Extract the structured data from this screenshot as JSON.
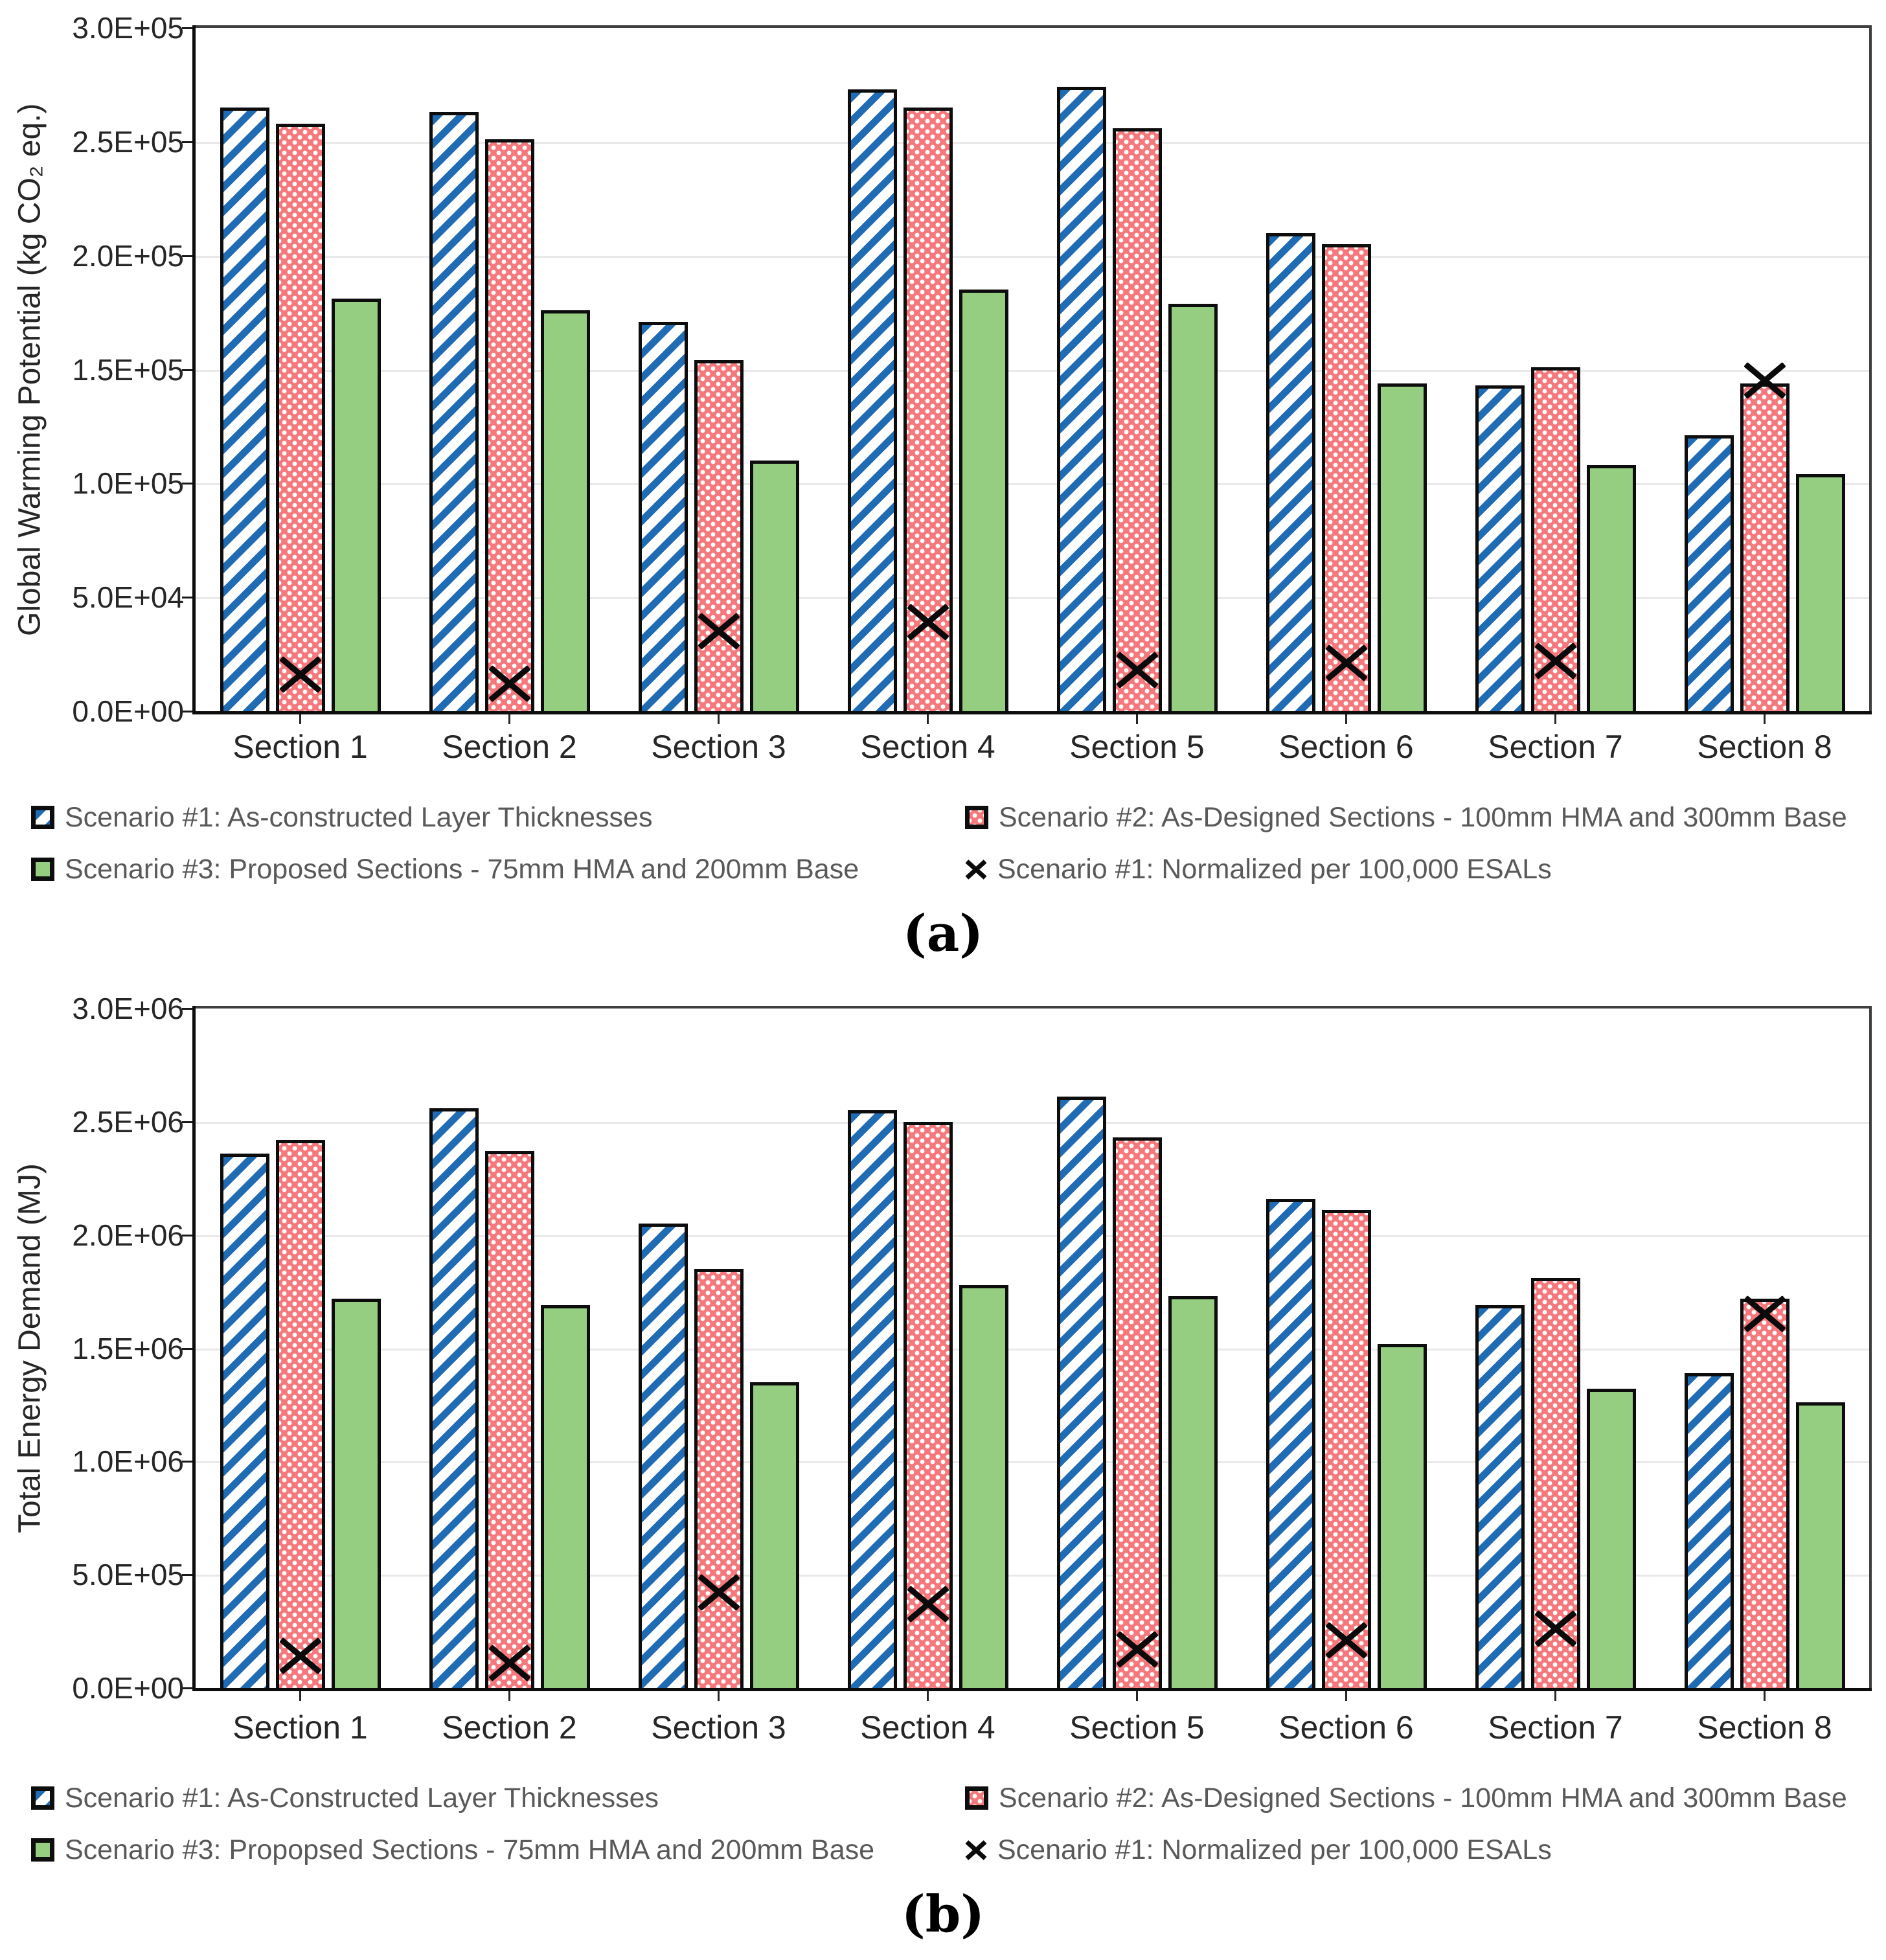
{
  "colors": {
    "scenario1_blue": "#1F6CB5",
    "scenario2_pink": "#F5787C",
    "scenario2_dot": "#FFFFFF",
    "scenario3_green": "#95CE81",
    "bar_border": "#0D0D0D",
    "marker_black": "#0A0A0A",
    "gridline": "#E9E9E9",
    "axis_text": "#262626",
    "legend_text": "#595959"
  },
  "chart_data": [
    {
      "type": "bar",
      "caption": "(a)",
      "ylabel": "Global Warming Potential  (kg CO₂ eq.)",
      "xlabel": "",
      "ylim": [
        0,
        300000
      ],
      "ytick_labels": [
        "0.0E+00",
        "5.0E+04",
        "1.0E+05",
        "1.5E+05",
        "2.0E+05",
        "2.5E+05",
        "3.0E+05"
      ],
      "grid": true,
      "legend_position": "bottom",
      "categories": [
        "Section 1",
        "Section 2",
        "Section 3",
        "Section 4",
        "Section 5",
        "Section 6",
        "Section 7",
        "Section 8"
      ],
      "series": [
        {
          "name": "Scenario #1: As-constructed Layer Thicknesses",
          "type": "bar",
          "style": "blue-diagonal-hatch",
          "values": [
            265000,
            263000,
            171000,
            273000,
            274000,
            210000,
            143000,
            121000
          ]
        },
        {
          "name": "Scenario #2: As-Designed Sections - 100mm HMA and 300mm Base",
          "type": "bar",
          "style": "pink-dot-pattern",
          "values": [
            258000,
            251000,
            154000,
            265000,
            256000,
            205000,
            151000,
            144000
          ]
        },
        {
          "name": "Scenario #3: Proposed Sections - 75mm HMA and 200mm Base",
          "type": "bar",
          "style": "green-solid",
          "values": [
            181000,
            176000,
            110000,
            185000,
            179000,
            144000,
            108000,
            104000
          ]
        },
        {
          "name": "Scenario #1: Normalized per 100,000 ESALs",
          "type": "marker",
          "style": "black-x",
          "values": [
            16000,
            12000,
            35000,
            39000,
            18000,
            21000,
            22000,
            145000
          ]
        }
      ]
    },
    {
      "type": "bar",
      "caption": "(b)",
      "ylabel": "Total Energy Demand (MJ)",
      "xlabel": "",
      "ylim": [
        0,
        3000000
      ],
      "ytick_labels": [
        "0.0E+00",
        "5.0E+05",
        "1.0E+06",
        "1.5E+06",
        "2.0E+06",
        "2.5E+06",
        "3.0E+06"
      ],
      "grid": true,
      "legend_position": "bottom",
      "categories": [
        "Section 1",
        "Section 2",
        "Section 3",
        "Section 4",
        "Section 5",
        "Section 6",
        "Section 7",
        "Section 8"
      ],
      "series": [
        {
          "name": "Scenario #1: As-Constructed Layer Thicknesses",
          "type": "bar",
          "style": "blue-diagonal-hatch",
          "values": [
            2360000,
            2560000,
            2050000,
            2550000,
            2610000,
            2160000,
            1690000,
            1390000
          ]
        },
        {
          "name": "Scenario #2: As-Designed Sections  - 100mm HMA and 300mm Base",
          "type": "bar",
          "style": "pink-dot-pattern",
          "values": [
            2420000,
            2370000,
            1850000,
            2500000,
            2430000,
            2110000,
            1810000,
            1720000
          ]
        },
        {
          "name": "Scenario #3: Propopsed Sections - 75mm HMA and 200mm Base",
          "type": "bar",
          "style": "green-solid",
          "values": [
            1720000,
            1690000,
            1350000,
            1780000,
            1730000,
            1520000,
            1320000,
            1260000
          ]
        },
        {
          "name": "Scenario #1: Normalized per 100,000 ESALs",
          "type": "marker",
          "style": "black-x",
          "values": [
            140000,
            110000,
            420000,
            370000,
            170000,
            210000,
            260000,
            1650000
          ]
        }
      ]
    }
  ]
}
